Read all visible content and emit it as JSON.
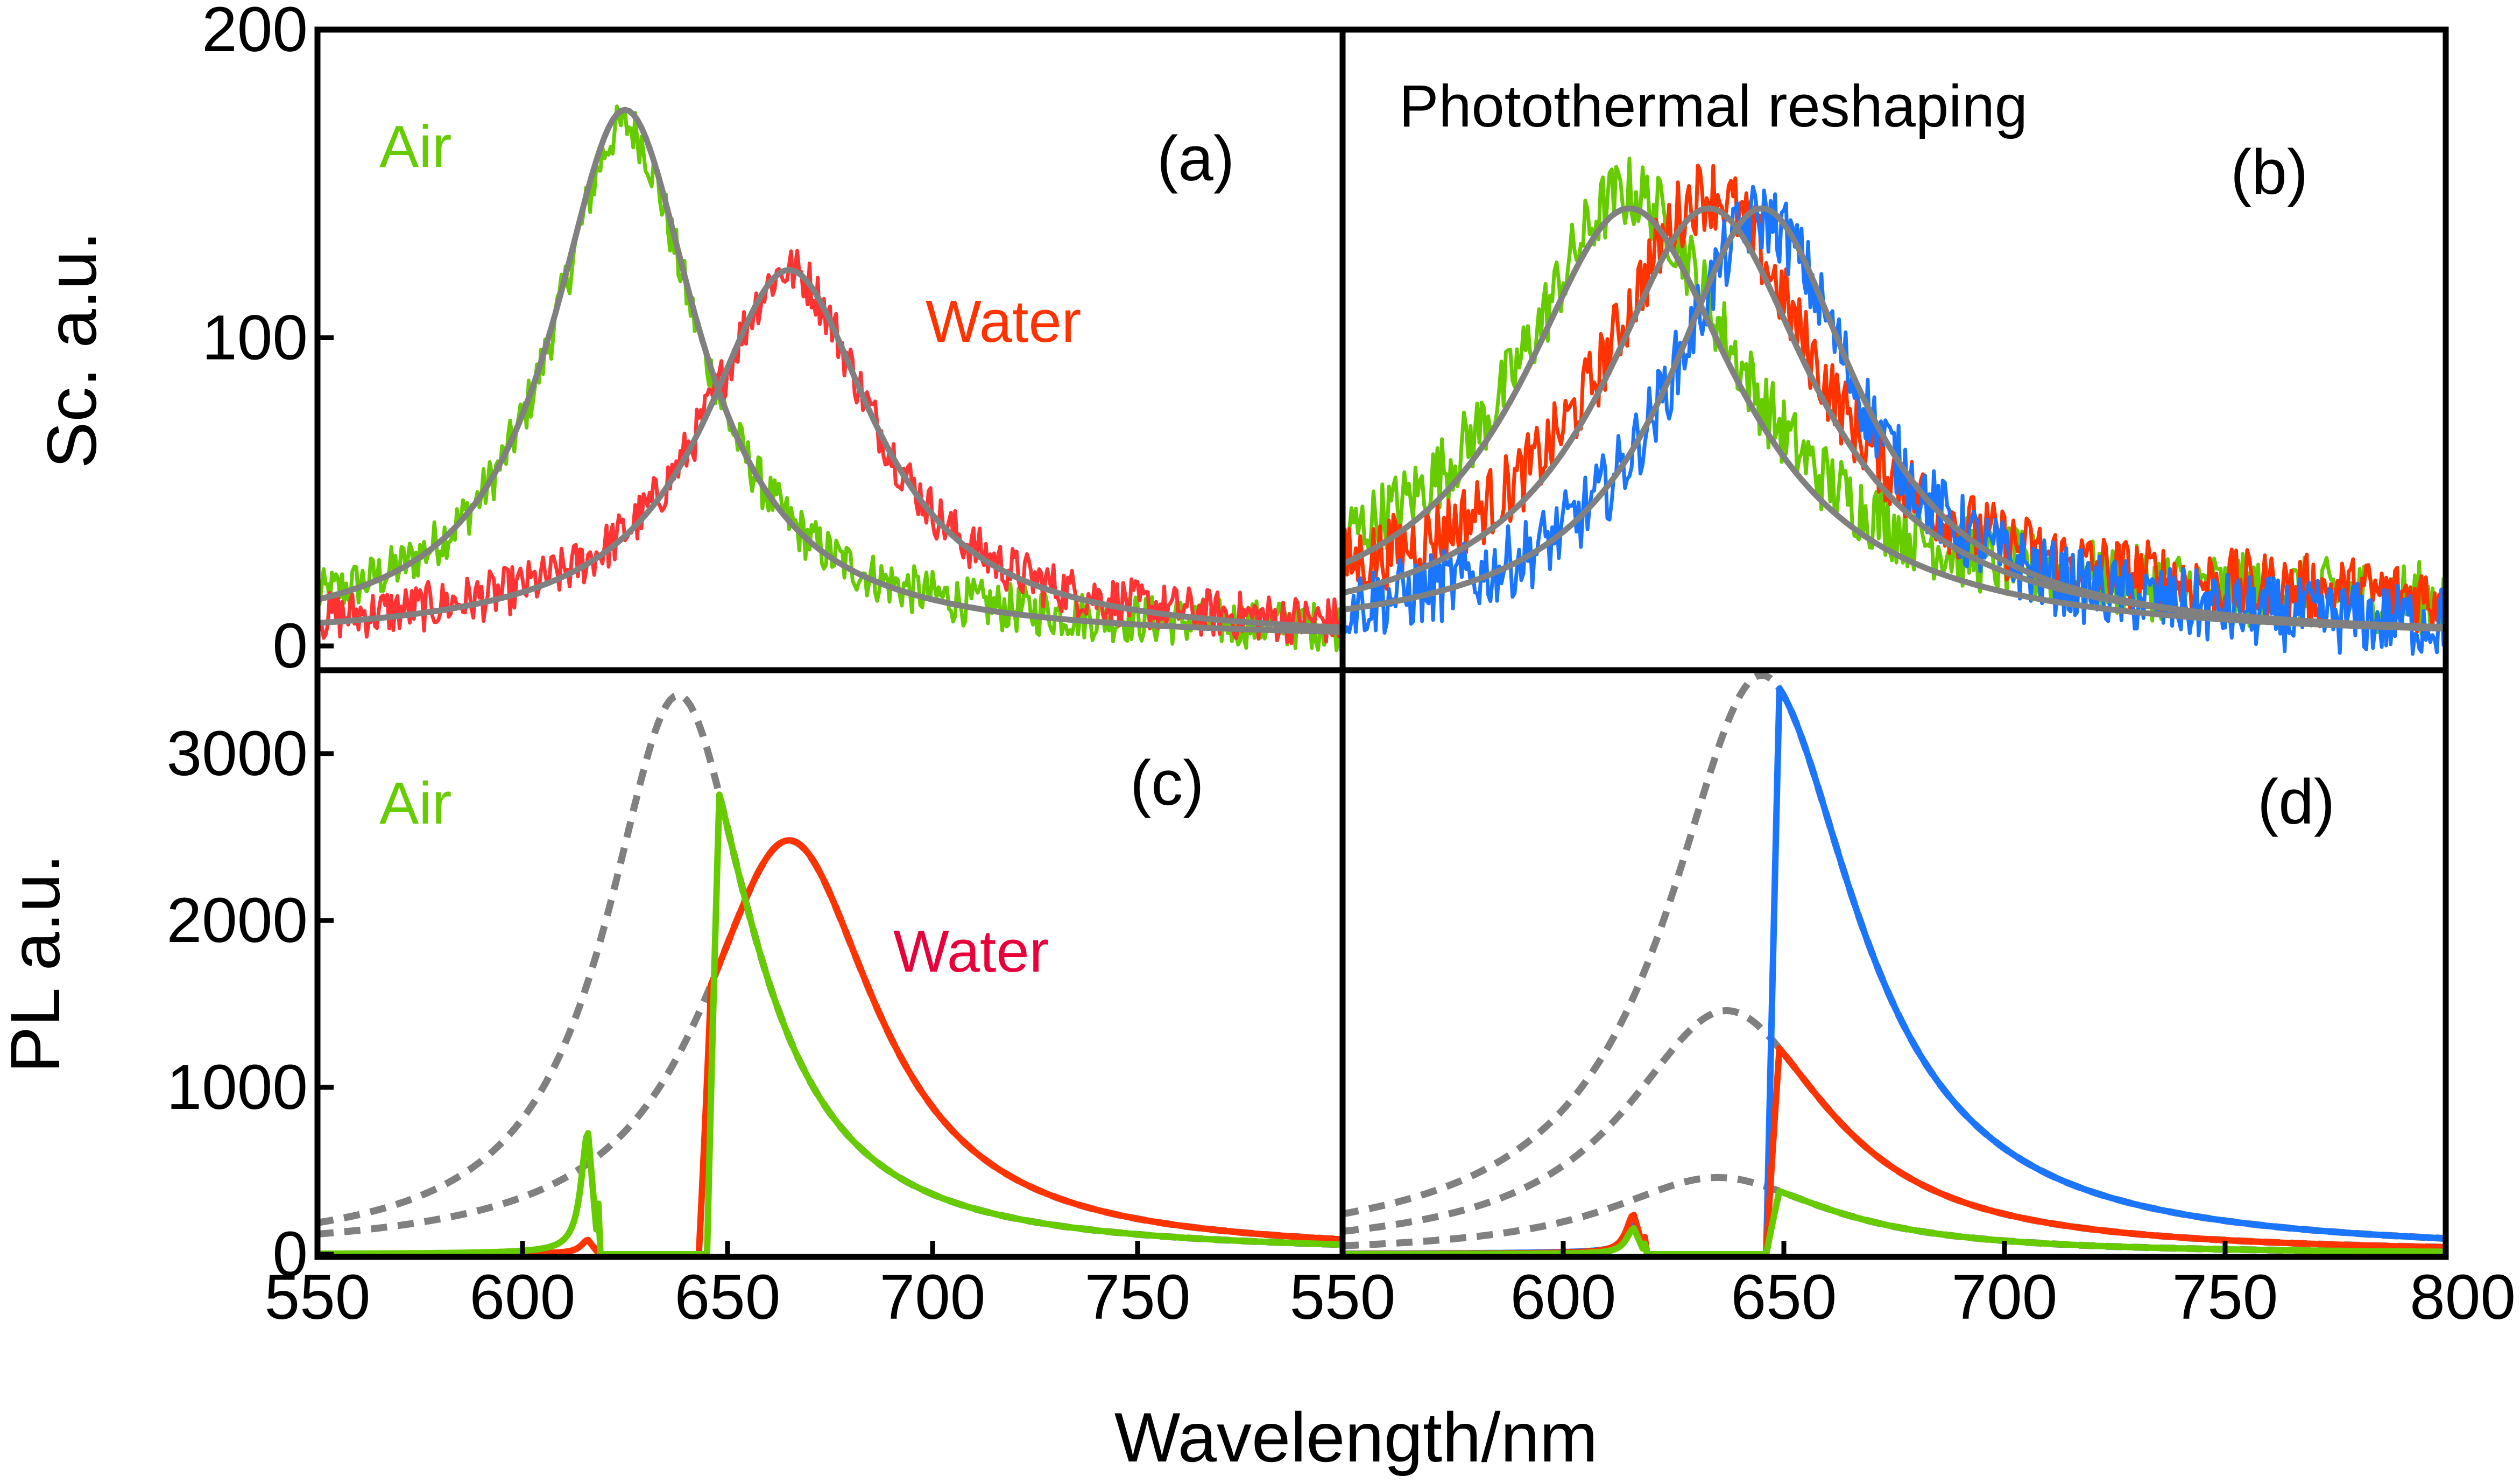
{
  "figure": {
    "xlabel": "Wavelength/nm",
    "colors": {
      "green": "#66cc00",
      "red": "#ff3333",
      "orange_red": "#ff3300",
      "blue": "#1a75ff",
      "gray": "#808080",
      "water_text_top": "#ff3300",
      "water_text_bottom": "#e8003a",
      "air_text": "#66cc00"
    }
  },
  "chart_data": [
    {
      "id": "a",
      "type": "line",
      "panel_label": "(a)",
      "ylabel": "Sc. a.u.",
      "xlim": [
        550,
        800
      ],
      "ylim": [
        0,
        200
      ],
      "xticks": [
        "550",
        "600",
        "650",
        "700",
        "750"
      ],
      "yticks": [
        "0",
        "100",
        "200"
      ],
      "annotations": [
        {
          "text": "Air",
          "color": "#66cc00"
        },
        {
          "text": "Water",
          "color": "#ff3300"
        }
      ],
      "series": [
        {
          "name": "Air (measured)",
          "style": "noisy",
          "color": "#66cc00",
          "peak": 625,
          "width": 43,
          "amp": 165,
          "base": 4,
          "noise": 8
        },
        {
          "name": "Water (measured)",
          "style": "noisy",
          "color": "#ff3333",
          "peak": 665,
          "width": 50,
          "amp": 118,
          "base": 4,
          "noise": 8
        },
        {
          "name": "Air (fit)",
          "style": "solid",
          "color": "#808080",
          "peak": 625,
          "width": 43,
          "amp": 172,
          "base": 2
        },
        {
          "name": "Water (fit)",
          "style": "solid",
          "color": "#808080",
          "peak": 665,
          "width": 50,
          "amp": 120,
          "base": 2
        }
      ]
    },
    {
      "id": "b",
      "type": "line",
      "panel_label": "(b)",
      "title": "Photothermal reshaping",
      "xlim": [
        550,
        800
      ],
      "ylim": [
        0,
        200
      ],
      "xticks": [],
      "yticks": [],
      "annotations": [],
      "series": [
        {
          "name": "Green (measured)",
          "style": "noisy",
          "color": "#66cc00",
          "peak": 615,
          "width": 60,
          "amp": 135,
          "base": 12,
          "noise": 12
        },
        {
          "name": "Red (measured)",
          "style": "noisy",
          "color": "#ff3300",
          "peak": 633,
          "width": 58,
          "amp": 135,
          "base": 12,
          "noise": 12
        },
        {
          "name": "Blue (measured)",
          "style": "noisy",
          "color": "#1a75ff",
          "peak": 645,
          "width": 52,
          "amp": 135,
          "base": 4,
          "noise": 12
        },
        {
          "name": "Green (fit)",
          "style": "solid",
          "color": "#808080",
          "peak": 615,
          "width": 60,
          "amp": 140,
          "base": 2
        },
        {
          "name": "Red (fit)",
          "style": "solid",
          "color": "#808080",
          "peak": 633,
          "width": 58,
          "amp": 140,
          "base": 2
        },
        {
          "name": "Blue (fit)",
          "style": "solid",
          "color": "#808080",
          "peak": 645,
          "width": 52,
          "amp": 140,
          "base": 2
        }
      ]
    },
    {
      "id": "c",
      "type": "line",
      "panel_label": "(c)",
      "ylabel": "PL a.u.",
      "xlim": [
        550,
        800
      ],
      "ylim": [
        0,
        3500
      ],
      "xticks": [
        "550",
        "600",
        "650",
        "700",
        "750"
      ],
      "yticks": [
        "0",
        "1000",
        "2000",
        "3000"
      ],
      "annotations": [
        {
          "text": "Air",
          "color": "#66cc00"
        },
        {
          "text": "Water",
          "color": "#e8003a"
        }
      ],
      "series": [
        {
          "name": "Air scaled scattering",
          "style": "dashed",
          "color": "#808080",
          "peak": 638,
          "width": 43,
          "amp": 3350
        },
        {
          "name": "Water scaled scattering",
          "style": "dashed",
          "color": "#808080",
          "peak": 665,
          "width": 52,
          "amp": 2480
        },
        {
          "name": "Water PL",
          "style": "pl",
          "color": "#ff3300",
          "peak": 665,
          "width": 52,
          "amp": 2480,
          "cut": 643,
          "notch": 616,
          "notch_amp": 80
        },
        {
          "name": "Air PL",
          "style": "pl",
          "color": "#66cc00",
          "peak": 638,
          "width": 43,
          "amp": 3350,
          "cut": 645,
          "notch": 616,
          "notch_amp": 720
        }
      ]
    },
    {
      "id": "d",
      "type": "line",
      "panel_label": "(d)",
      "xlim": [
        550,
        800
      ],
      "ylim": [
        0,
        3500
      ],
      "xticks": [
        "550",
        "600",
        "650",
        "700",
        "750",
        "800"
      ],
      "yticks": [],
      "annotations": [],
      "series": [
        {
          "name": "Blue scaled scattering",
          "style": "dashed",
          "color": "#808080",
          "peak": 645,
          "width": 52,
          "amp": 3470
        },
        {
          "name": "Red scaled scattering",
          "style": "dashed",
          "color": "#808080",
          "peak": 637,
          "width": 56,
          "amp": 1460
        },
        {
          "name": "Green scaled scattering",
          "style": "dashed",
          "color": "#808080",
          "peak": 635,
          "width": 60,
          "amp": 460
        },
        {
          "name": "Blue PL",
          "style": "pl",
          "color": "#1a75ff",
          "peak": 645,
          "width": 52,
          "amp": 3470,
          "cut": 646,
          "notch": 616,
          "notch_amp": 180
        },
        {
          "name": "Red PL",
          "style": "pl",
          "color": "#ff3300",
          "peak": 637,
          "width": 56,
          "amp": 1460,
          "cut": 646,
          "notch": 616,
          "notch_amp": 230
        },
        {
          "name": "Green PL",
          "style": "pl",
          "color": "#66cc00",
          "peak": 635,
          "width": 60,
          "amp": 460,
          "cut": 646,
          "notch": 616,
          "notch_amp": 150
        }
      ]
    }
  ]
}
